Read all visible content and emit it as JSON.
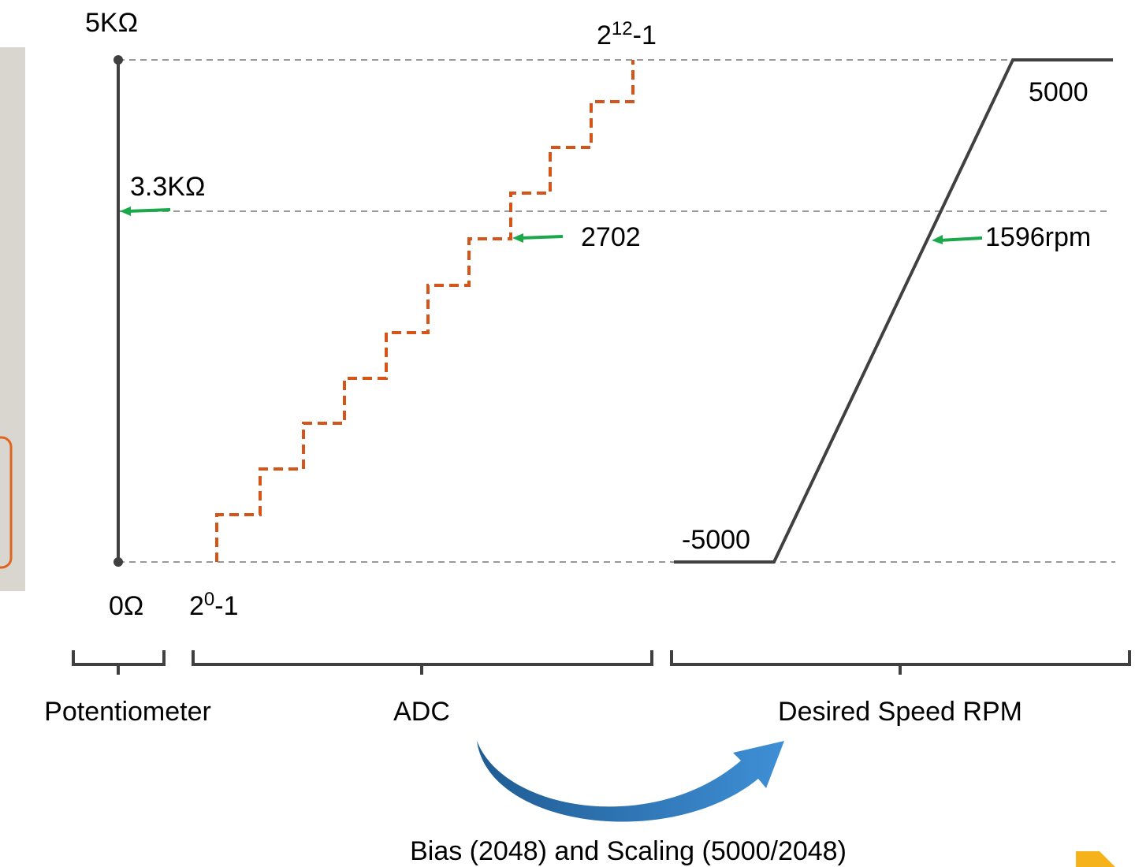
{
  "labels": {
    "pot_max": "5KΩ",
    "pot_min": "0Ω",
    "pot_value": "3.3KΩ",
    "adc_max": {
      "base": "2",
      "exponent": "12",
      "suffix": "-1"
    },
    "adc_min": {
      "base": "2",
      "exponent": "0",
      "suffix": "-1"
    },
    "adc_value": "2702",
    "rpm_max": "5000",
    "rpm_min": "-5000",
    "rpm_value": "1596rpm"
  },
  "sections": [
    "Potentiometer",
    "ADC",
    "Desired Speed RPM"
  ],
  "caption": "Bias (2048) and Scaling (5000/2048)"
}
